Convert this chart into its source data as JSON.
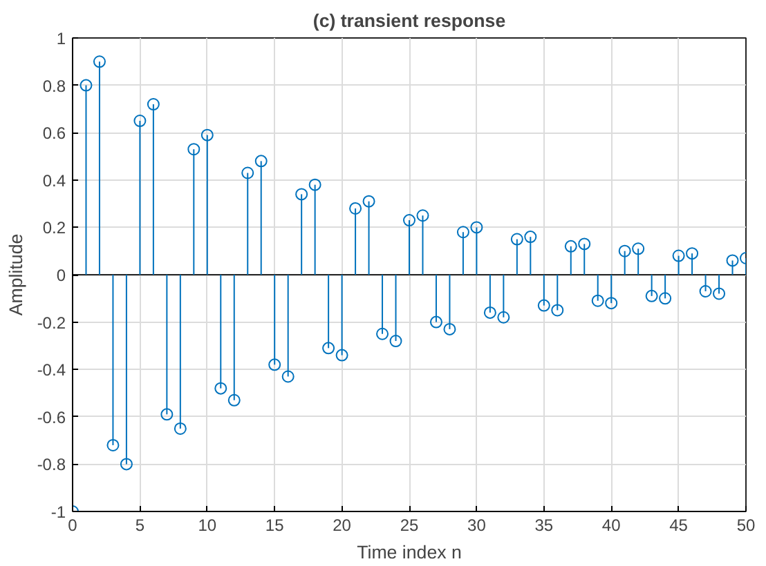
{
  "chart_data": {
    "type": "lollipop",
    "title": "(c) transient response",
    "xlabel": "Time index n",
    "ylabel": "Amplitude",
    "x": [
      0,
      1,
      2,
      3,
      4,
      5,
      6,
      7,
      8,
      9,
      10,
      11,
      12,
      13,
      14,
      15,
      16,
      17,
      18,
      19,
      20,
      21,
      22,
      23,
      24,
      25,
      26,
      27,
      28,
      29,
      30,
      31,
      32,
      33,
      34,
      35,
      36,
      37,
      38,
      39,
      40,
      41,
      42,
      43,
      44,
      45,
      46,
      47,
      48,
      49,
      50
    ],
    "series": [
      {
        "color": "#0072bd",
        "values": [
          -1,
          0.8,
          0.9,
          -0.72,
          -0.8,
          0.65,
          0.72,
          -0.59,
          -0.65,
          0.53,
          0.59,
          -0.48,
          -0.53,
          0.43,
          0.48,
          -0.38,
          -0.43,
          0.34,
          0.38,
          -0.31,
          -0.34,
          0.28,
          0.31,
          -0.25,
          -0.28,
          0.23,
          0.25,
          -0.2,
          -0.23,
          0.18,
          0.2,
          -0.16,
          -0.18,
          0.15,
          0.16,
          -0.13,
          -0.15,
          0.12,
          0.13,
          -0.11,
          -0.12,
          0.1,
          0.11,
          -0.09,
          -0.1,
          0.08,
          0.09,
          -0.07,
          -0.08,
          0.06,
          0.07
        ]
      }
    ],
    "xlim": [
      0,
      50
    ],
    "ylim": [
      -1,
      1
    ],
    "xticks": [
      0,
      5,
      10,
      15,
      20,
      25,
      30,
      35,
      40,
      45,
      50
    ],
    "yticks": [
      -1,
      -0.8,
      -0.6,
      -0.4,
      -0.2,
      0,
      0.2,
      0.4,
      0.6,
      0.8,
      1
    ],
    "grid": true,
    "marker": "circle"
  }
}
